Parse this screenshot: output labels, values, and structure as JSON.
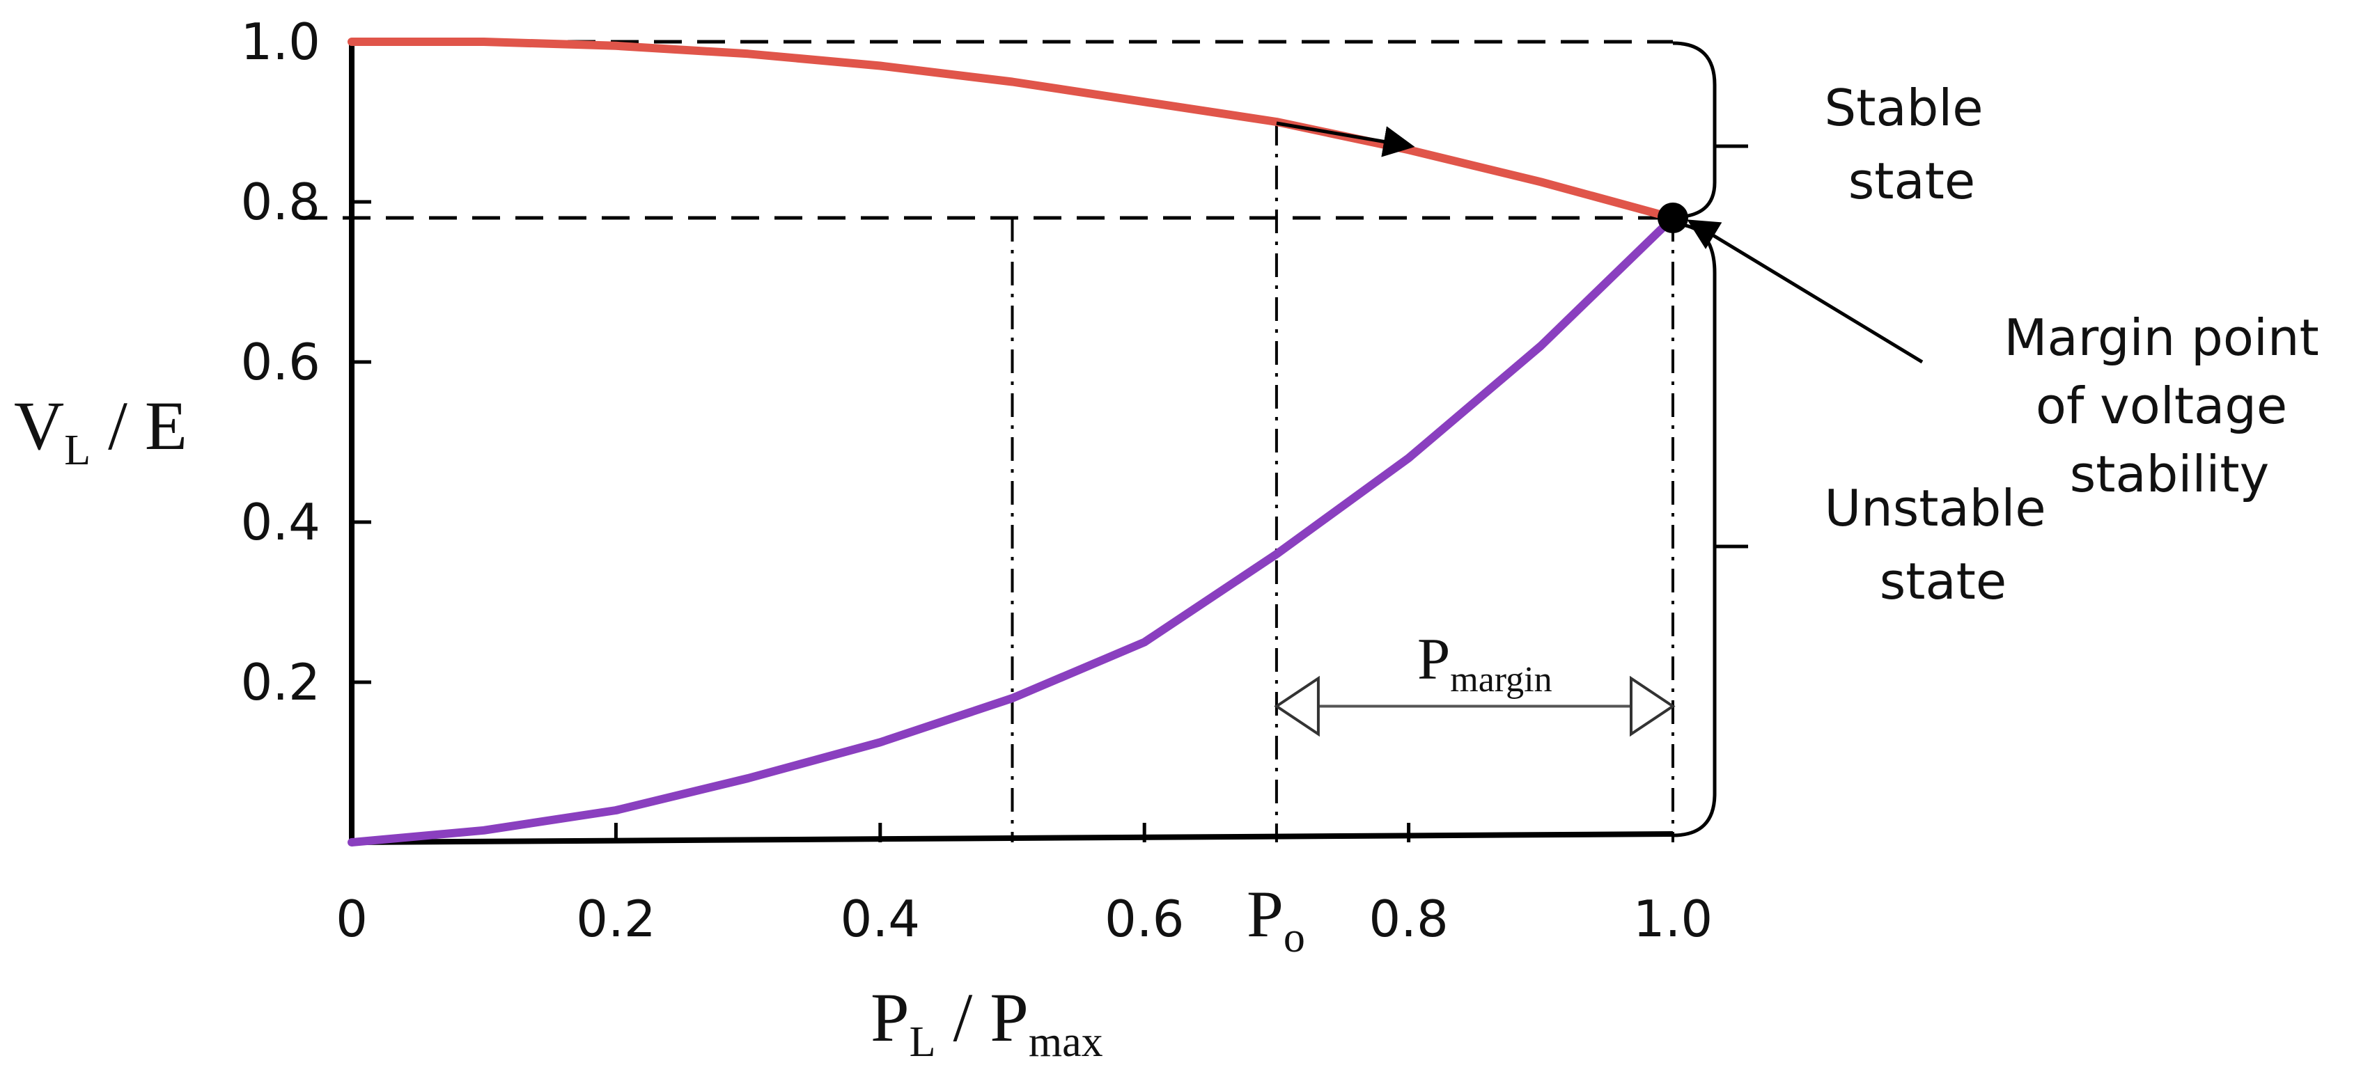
{
  "chart_data": {
    "type": "line",
    "xlabel": {
      "main": "P",
      "sub": "L",
      "sep": " / P",
      "sub2": "max"
    },
    "ylabel": {
      "main": "V",
      "sub": "L",
      "rest": " / E"
    },
    "xlim": [
      0,
      1.0
    ],
    "ylim": [
      0,
      1.0
    ],
    "x_ticks": [
      "0",
      "0.2",
      "0.4",
      "0.6",
      "0.8",
      "1.0"
    ],
    "x_tick_values": [
      0,
      0.2,
      0.4,
      0.6,
      0.8,
      1.0
    ],
    "y_ticks": [
      "0.2",
      "0.4",
      "0.6",
      "0.8",
      "1.0"
    ],
    "y_tick_values": [
      0.2,
      0.4,
      0.6,
      0.8,
      1.0
    ],
    "grid": false,
    "series": [
      {
        "color": "#e0554a",
        "x": [
          0,
          0.1,
          0.2,
          0.3,
          0.4,
          0.5,
          0.6,
          0.7,
          0.8,
          0.9,
          1.0
        ],
        "y": [
          1.0,
          1.0,
          0.995,
          0.985,
          0.97,
          0.95,
          0.925,
          0.9,
          0.865,
          0.825,
          0.78
        ]
      },
      {
        "color": "#8a3fbf",
        "x": [
          0,
          0.1,
          0.2,
          0.3,
          0.4,
          0.5,
          0.6,
          0.7,
          0.8,
          0.9,
          1.0
        ],
        "y": [
          0.0,
          0.015,
          0.04,
          0.08,
          0.125,
          0.18,
          0.25,
          0.36,
          0.48,
          0.62,
          0.78
        ]
      }
    ],
    "margin_point": {
      "x": 1.0,
      "y": 0.78
    },
    "dashdot_x": [
      0.5,
      0.7,
      1.0
    ],
    "p0": {
      "x": 0.7,
      "label": "P",
      "sub": "o"
    },
    "p_margin": {
      "label": "P",
      "sub": "margin",
      "from": 0.7,
      "to": 1.0,
      "y": 0.17
    },
    "annotations": {
      "stable": [
        "Stable",
        "state"
      ],
      "unstable": [
        "Unstable",
        "state"
      ],
      "margin_point": [
        "Margin point",
        "of voltage",
        "stability"
      ]
    }
  }
}
